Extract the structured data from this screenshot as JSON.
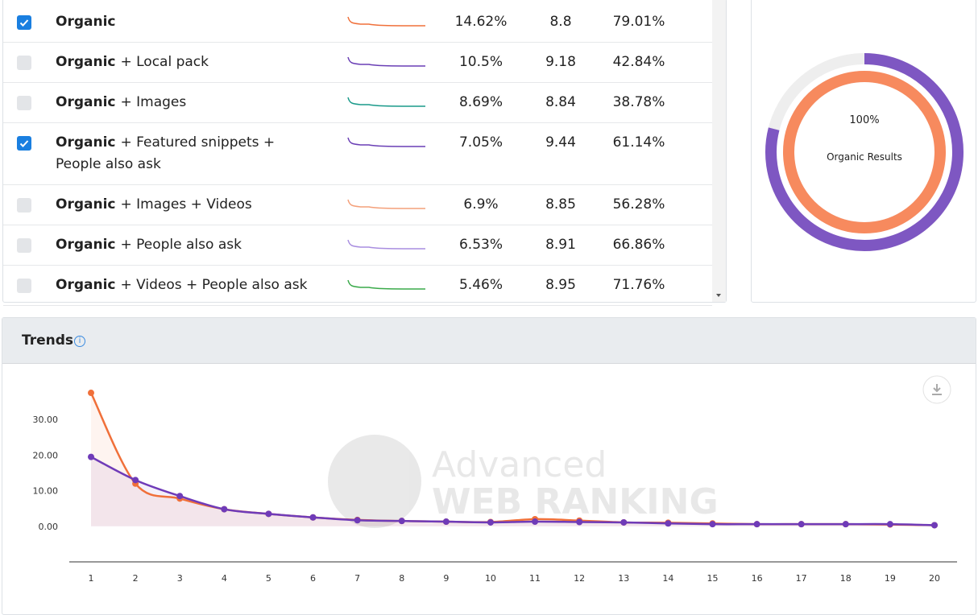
{
  "table": {
    "rows": [
      {
        "checked": true,
        "name_bold": "Organic",
        "color": "#f0703a",
        "cells": [
          "14.62%",
          "8.8",
          "79.01%"
        ]
      },
      {
        "checked": false,
        "name_bold": "Organic",
        "name_rest": "+ Local pack",
        "color": "#6a3fb5",
        "cells": [
          "10.5%",
          "9.18",
          "42.84%"
        ]
      },
      {
        "checked": false,
        "name_bold": "Organic",
        "name_rest": "+ Images",
        "color": "#1a9a8a",
        "cells": [
          "8.69%",
          "8.84",
          "38.78%"
        ]
      },
      {
        "checked": true,
        "name_bold": "Organic",
        "name_rest": "+ Featured snippets + People also ask",
        "color": "#6a3fb5",
        "cells": [
          "7.05%",
          "9.44",
          "61.14%"
        ]
      },
      {
        "checked": false,
        "name_bold": "Organic",
        "name_rest": "+ Images + Videos",
        "color": "#f4a07a",
        "cells": [
          "6.9%",
          "8.85",
          "56.28%"
        ]
      },
      {
        "checked": false,
        "name_bold": "Organic",
        "name_rest": "+ People also ask",
        "color": "#a98ee0",
        "cells": [
          "6.53%",
          "8.91",
          "66.86%"
        ]
      },
      {
        "checked": false,
        "name_bold": "Organic",
        "name_rest": "+ Videos + People also ask",
        "color": "#3aaa4a",
        "cells": [
          "5.46%",
          "8.95",
          "71.76%"
        ]
      }
    ]
  },
  "donut": {
    "center_label": "100%",
    "caption": "Organic Results",
    "rings": [
      {
        "color": "#7e57c2",
        "value": 79.01
      },
      {
        "color": "#f78a5e",
        "value": 100
      }
    ]
  },
  "trends": {
    "title": "Trends",
    "watermark": [
      "Advanced",
      "WEB RANKING"
    ],
    "chart_data": {
      "type": "line",
      "categories": [
        "1",
        "2",
        "3",
        "4",
        "5",
        "6",
        "7",
        "8",
        "9",
        "10",
        "11",
        "12",
        "13",
        "14",
        "15",
        "16",
        "17",
        "18",
        "19",
        "20"
      ],
      "ylim": [
        -10,
        40
      ],
      "yticks": [
        {
          "value": 0,
          "label": "0.00"
        },
        {
          "value": 10,
          "label": "10.00"
        },
        {
          "value": 20,
          "label": "20.00"
        },
        {
          "value": 30,
          "label": "30.00"
        }
      ],
      "series": [
        {
          "color": "#f0703a",
          "values": [
            37.5,
            12,
            7.8,
            4.8,
            3.5,
            2.5,
            1.8,
            1.5,
            1.3,
            1.2,
            2.0,
            1.6,
            1.1,
            1.0,
            0.8,
            0.6,
            0.6,
            0.6,
            0.5,
            0.3
          ]
        },
        {
          "color": "#6f3bb8",
          "values": [
            19.5,
            13,
            8.5,
            4.8,
            3.5,
            2.5,
            1.7,
            1.5,
            1.3,
            1.1,
            1.3,
            1.2,
            1.1,
            0.8,
            0.6,
            0.6,
            0.6,
            0.6,
            0.6,
            0.3
          ]
        }
      ]
    }
  }
}
